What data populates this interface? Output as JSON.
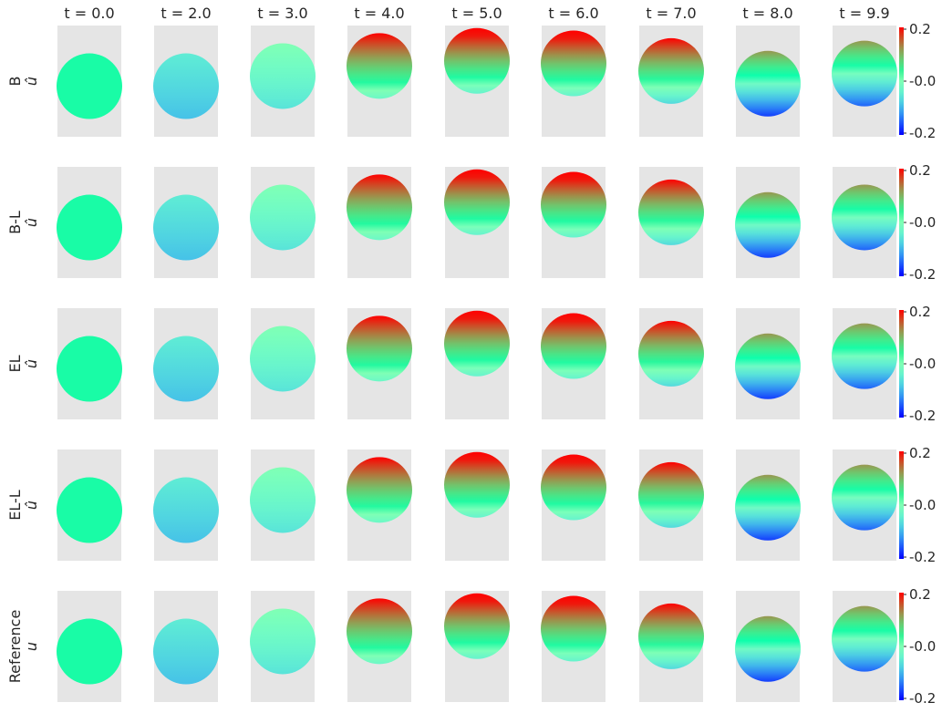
{
  "chart_data": {
    "type": "heatmap",
    "times": [
      "t = 0.0",
      "t = 2.0",
      "t = 3.0",
      "t = 4.0",
      "t = 5.0",
      "t = 6.0",
      "t = 7.0",
      "t = 8.0",
      "t = 9.9"
    ],
    "rows": [
      {
        "label": "B",
        "var": "û"
      },
      {
        "label": "B-L",
        "var": "û"
      },
      {
        "label": "EL",
        "var": "û"
      },
      {
        "label": "EL-L",
        "var": "û"
      },
      {
        "label": "Reference",
        "var": "u"
      }
    ],
    "colorbar": {
      "colormap": "rainbow",
      "range": [
        -0.2,
        0.2
      ],
      "ticks": [
        "0.2",
        "-0.0",
        "-0.2"
      ]
    },
    "panel_background": "#e5e5e5",
    "droplet": {
      "center_y": [
        -0.1,
        -0.1,
        0.1,
        0.3,
        0.4,
        0.35,
        0.2,
        -0.05,
        0.15
      ],
      "top_value": [
        0.02,
        -0.05,
        0.0,
        0.2,
        0.22,
        0.22,
        0.2,
        0.12,
        0.12
      ],
      "bottom_value": [
        0.02,
        -0.09,
        -0.06,
        -0.03,
        -0.04,
        -0.04,
        -0.07,
        -0.17,
        -0.15
      ],
      "rows_center_y": [
        [
          -0.1,
          -0.1,
          0.1,
          0.3,
          0.4,
          0.35,
          0.2,
          -0.05,
          0.15
        ],
        [
          -0.1,
          -0.1,
          0.1,
          0.3,
          0.4,
          0.35,
          0.2,
          -0.05,
          0.1
        ],
        [
          -0.1,
          -0.1,
          0.1,
          0.3,
          0.4,
          0.35,
          0.2,
          -0.05,
          0.15
        ],
        [
          -0.1,
          -0.1,
          0.1,
          0.3,
          0.4,
          0.35,
          0.2,
          -0.05,
          0.15
        ],
        [
          -0.1,
          -0.1,
          0.1,
          0.3,
          0.4,
          0.35,
          0.2,
          -0.05,
          0.15
        ]
      ]
    }
  }
}
